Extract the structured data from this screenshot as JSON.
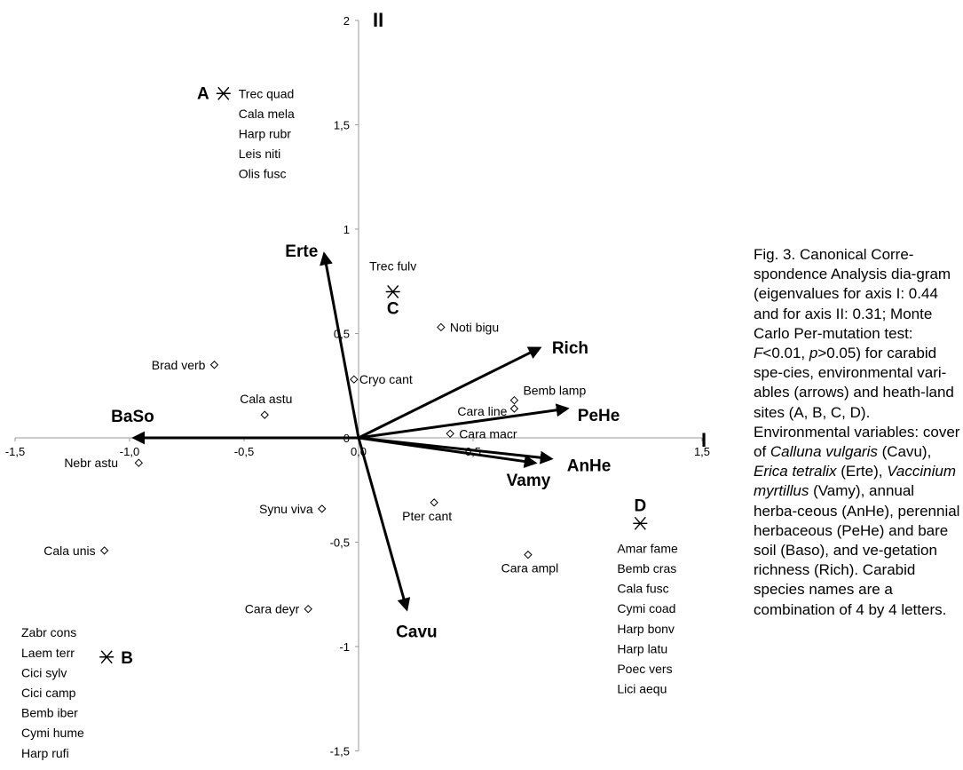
{
  "chart_data": {
    "type": "scatter",
    "title": "",
    "xlabel": "I",
    "ylabel": "II",
    "xlim": [
      -1.5,
      1.5
    ],
    "ylim": [
      -1.5,
      2
    ],
    "x_ticks": [
      {
        "v": -1.5,
        "label": "-1,5"
      },
      {
        "v": -1,
        "label": "-1,0"
      },
      {
        "v": -0.5,
        "label": "-0,5"
      },
      {
        "v": 0,
        "label": "0,0"
      },
      {
        "v": 0.5,
        "label": "0,5"
      },
      {
        "v": 1.5,
        "label": "1,5"
      }
    ],
    "y_ticks": [
      {
        "v": 2,
        "label": "2"
      },
      {
        "v": 1.5,
        "label": "1,5"
      },
      {
        "v": 1,
        "label": "1"
      },
      {
        "v": 0.5,
        "label": "0,5"
      },
      {
        "v": 0,
        "label": "0"
      },
      {
        "v": -0.5,
        "label": "-0,5"
      },
      {
        "v": -1,
        "label": "-1"
      },
      {
        "v": -1.5,
        "label": "-1,5"
      }
    ],
    "species": [
      {
        "name": "Noti bigu",
        "x": 0.36,
        "y": 0.53
      },
      {
        "name": "Brad verb",
        "x": -0.63,
        "y": 0.35
      },
      {
        "name": "Cryo cant",
        "x": -0.02,
        "y": 0.28
      },
      {
        "name": "Cala astu",
        "x": -0.41,
        "y": 0.11
      },
      {
        "name": "Bemb lamp",
        "x": 0.68,
        "y": 0.18
      },
      {
        "name": "Cara line",
        "x": 0.68,
        "y": 0.14
      },
      {
        "name": "Cara macr",
        "x": 0.4,
        "y": 0.02
      },
      {
        "name": "Nebr astu",
        "x": -0.96,
        "y": -0.12
      },
      {
        "name": "Pter cant",
        "x": 0.33,
        "y": -0.31
      },
      {
        "name": "Synu viva",
        "x": -0.16,
        "y": -0.34
      },
      {
        "name": "Cala unis",
        "x": -1.11,
        "y": -0.54
      },
      {
        "name": "Cara ampl",
        "x": 0.74,
        "y": -0.56
      },
      {
        "name": "Cara deyr",
        "x": -0.22,
        "y": -0.82
      }
    ],
    "environmental_variables": [
      {
        "name": "Erte",
        "x": -0.15,
        "y": 0.88
      },
      {
        "name": "Rich",
        "x": 0.79,
        "y": 0.43
      },
      {
        "name": "PeHe",
        "x": 0.91,
        "y": 0.14
      },
      {
        "name": "BaSo",
        "x": -0.98,
        "y": 0.0
      },
      {
        "name": "AnHe",
        "x": 0.84,
        "y": -0.1
      },
      {
        "name": "Vamy",
        "x": 0.77,
        "y": -0.12
      },
      {
        "name": "Cavu",
        "x": 0.21,
        "y": -0.82
      }
    ],
    "sites": [
      {
        "name": "A",
        "x": -0.59,
        "y": 1.65,
        "species": [
          "Trec quad",
          "Cala mela",
          "Harp rubr",
          "Leis niti",
          "Olis fusc"
        ]
      },
      {
        "name": "C",
        "x": 0.15,
        "y": 0.7,
        "species": [
          "Trec fulv"
        ]
      },
      {
        "name": "B",
        "x": -1.1,
        "y": -1.05,
        "species": [
          "Zabr cons",
          "Laem terr",
          "Cici sylv",
          "Cici camp",
          "Bemb iber",
          "Cymi hume",
          "Harp rufi"
        ]
      },
      {
        "name": "D",
        "x": 1.23,
        "y": -0.41,
        "species": [
          "Amar fame",
          "Bemb cras",
          "Cala fusc",
          "Cymi coad",
          "Harp bonv",
          "Harp latu",
          "Poec vers",
          "Lici aequ"
        ]
      }
    ]
  },
  "caption": {
    "p1": "Fig. 3. Canonical Corre-spondence Analysis dia-gram (eigenvalues for axis I: 0.44 and for axis II: 0.31; Monte Carlo Per-mutation test: ",
    "f_sym": "F",
    "p2": "<0.01, ",
    "p_sym": "p",
    "p3": ">0.05) for carabid spe-cies, environmental vari-ables (arrows) and heath-land sites (A, B, C, D). Environmental variables: cover of ",
    "cavu_name": "Calluna vulgaris",
    "p4": " (Cavu), ",
    "erte_name": "Erica tetralix",
    "p5": " (Erte), ",
    "vamy_name": "Vaccinium myrtillus",
    "p6": " (Vamy), annual herba-ceous (AnHe), perennial herbaceous (PeHe) and bare soil (Baso), and ve-getation richness (Rich). Carabid species names are a combination of 4 by 4 letters."
  }
}
